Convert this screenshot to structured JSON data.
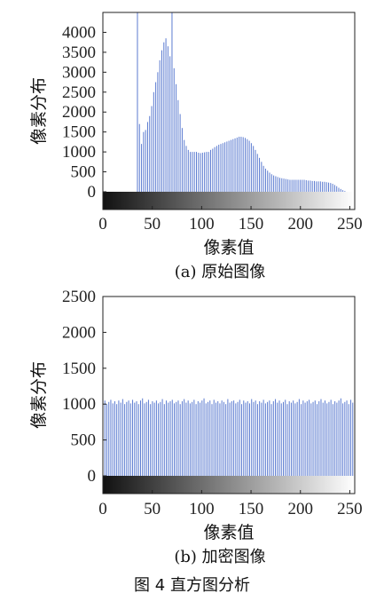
{
  "figure_caption": "图 4  直方图分析",
  "chart_data": [
    {
      "type": "bar",
      "id": "a",
      "caption": "(a) 原始图像",
      "xlabel": "像素值",
      "ylabel": "像素分布",
      "xlim": [
        0,
        255
      ],
      "ylim": [
        0,
        4500
      ],
      "xticks": [
        "0",
        "50",
        "100",
        "150",
        "200",
        "250"
      ],
      "yticks": [
        "0",
        "500",
        "1000",
        "1500",
        "2000",
        "2500",
        "3000",
        "3500",
        "4000"
      ],
      "bar_color": "#5b7bd0",
      "x_start": 35,
      "values": [
        4500,
        1700,
        1200,
        1500,
        1550,
        1750,
        1900,
        2150,
        2500,
        2750,
        3000,
        3300,
        3550,
        3750,
        3850,
        3650,
        3400,
        4500,
        3100,
        2700,
        2300,
        1950,
        1600,
        1300,
        1150,
        1050,
        1000,
        1000,
        1000,
        1000,
        980,
        970,
        980,
        990,
        1000,
        1000,
        1050,
        1080,
        1120,
        1150,
        1180,
        1200,
        1220,
        1240,
        1260,
        1280,
        1300,
        1320,
        1340,
        1360,
        1380,
        1380,
        1370,
        1350,
        1320,
        1280,
        1220,
        1150,
        1050,
        950,
        850,
        750,
        650,
        580,
        530,
        480,
        440,
        410,
        390,
        370,
        350,
        340,
        330,
        320,
        310,
        300,
        300,
        300,
        300,
        300,
        300,
        300,
        300,
        290,
        280,
        280,
        270,
        270,
        260,
        260,
        260,
        250,
        250,
        240,
        230,
        220,
        200,
        170,
        140,
        100,
        70,
        40,
        20
      ]
    },
    {
      "type": "bar",
      "id": "b",
      "caption": "(b) 加密图像",
      "xlabel": "像素值",
      "ylabel": "像素分布",
      "xlim": [
        0,
        255
      ],
      "ylim": [
        0,
        2500
      ],
      "xticks": [
        "0",
        "50",
        "100",
        "150",
        "200",
        "250"
      ],
      "yticks": [
        "0",
        "500",
        "1000",
        "1500",
        "2000",
        "2500"
      ],
      "bar_color": "#5b7bd0",
      "x_start": 0,
      "values": [
        1020,
        1050,
        1000,
        1030,
        1060,
        1010,
        1040,
        1000,
        1050,
        1020,
        1070,
        1000,
        1030,
        1050,
        1010,
        1060,
        1020,
        1040,
        1000,
        1050,
        1080,
        1010,
        1030,
        1060,
        1000,
        1040,
        1020,
        1050,
        1010,
        1030,
        1070,
        1000,
        1050,
        1020,
        1040,
        1060,
        1010,
        1030,
        1050,
        1000,
        1040,
        1070,
        1020,
        1050,
        1010,
        1030,
        1060,
        1000,
        1040,
        1020,
        1050,
        1080,
        1010,
        1030,
        1050,
        1000,
        1060,
        1020,
        1040,
        1010,
        1050,
        1030,
        1000,
        1070,
        1020,
        1040,
        1050,
        1010,
        1030,
        1060,
        1000,
        1050,
        1020,
        1040,
        1010,
        1070,
        1030,
        1050,
        1000,
        1040,
        1020,
        1060,
        1010,
        1030,
        1050,
        1000,
        1040,
        1070,
        1020,
        1050,
        1010,
        1030,
        1060,
        1000,
        1040,
        1020,
        1050,
        1010,
        1030,
        1070,
        1000,
        1050,
        1020,
        1040,
        1060,
        1010,
        1030,
        1050,
        1000,
        1040,
        1070,
        1020,
        1050,
        1010,
        1030,
        1060,
        1000,
        1040,
        1020,
        1050,
        1080,
        1010,
        1030,
        1050,
        1000,
        1060,
        1020,
        1040
      ]
    }
  ]
}
